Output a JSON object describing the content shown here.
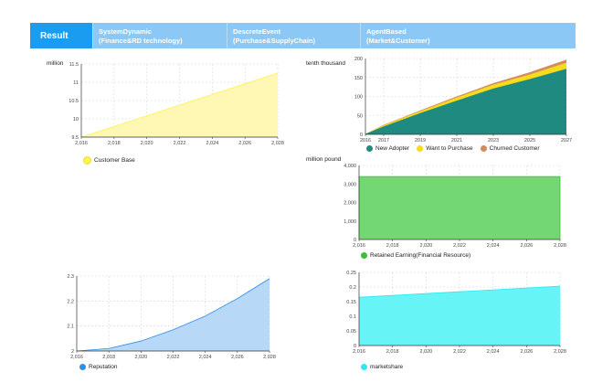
{
  "tabs": [
    {
      "line1": "Result",
      "line2": ""
    },
    {
      "line1": "SystemDynamic",
      "line2": "(Finance&RD technology)"
    },
    {
      "line1": "DescreteEvent",
      "line2": "(Purchase&SupplyChain)"
    },
    {
      "line1": "AgentBased",
      "line2": "(Market&Customer)"
    }
  ],
  "chart_data": [
    {
      "id": "customer_base",
      "type": "area",
      "ylabel_unit": "million",
      "x": [
        2016,
        2028
      ],
      "xticks": [
        "2,016",
        "2,018",
        "2,020",
        "2,022",
        "2,024",
        "2,026",
        "2,028"
      ],
      "yticks": [
        "9.5",
        "10",
        "10.5",
        "11",
        "11.5"
      ],
      "xlim": [
        2016,
        2028
      ],
      "ylim": [
        9.5,
        11.5
      ],
      "series": [
        {
          "name": "Customer Base",
          "color": "#fff34d",
          "fill": "#fff7b0",
          "x": [
            2016,
            2028
          ],
          "values": [
            9.5,
            11.25
          ]
        }
      ],
      "grid": true,
      "legend": "bottom"
    },
    {
      "id": "adopters",
      "type": "area",
      "stacked": true,
      "ylabel_unit": "tenth thousand",
      "xticks": [
        "2016",
        "2017",
        "2019",
        "2021",
        "2023",
        "2025",
        "2027"
      ],
      "xtick_values": [
        2016,
        2017,
        2019,
        2021,
        2023,
        2025,
        2027
      ],
      "yticks": [
        "0",
        "50",
        "100",
        "150",
        "200"
      ],
      "xlim": [
        2016,
        2027
      ],
      "ylim": [
        0,
        200
      ],
      "x": [
        2016,
        2017,
        2019,
        2021,
        2023,
        2025,
        2027
      ],
      "series": [
        {
          "name": "New Adopter",
          "color": "#1f8b80",
          "values": [
            0,
            20,
            55,
            88,
            120,
            145,
            172
          ]
        },
        {
          "name": "Want to Purchase",
          "color": "#f6dc1c",
          "values": [
            0,
            3,
            5,
            8,
            10,
            12,
            16
          ]
        },
        {
          "name": "Churned Customer",
          "color": "#d48c5c",
          "values": [
            0,
            1,
            2,
            3,
            4,
            6,
            8
          ]
        }
      ],
      "grid": true,
      "legend": "bottom"
    },
    {
      "id": "retained_earning",
      "type": "area",
      "ylabel_unit": "million pound",
      "xticks": [
        "2,016",
        "2,018",
        "2,020",
        "2,022",
        "2,024",
        "2,026",
        "2,028"
      ],
      "yticks": [
        "0",
        "1,000",
        "2,000",
        "3,000",
        "4,000"
      ],
      "xlim": [
        2016,
        2028
      ],
      "ylim": [
        0,
        4000
      ],
      "series": [
        {
          "name": "Retained Earning(Financial Resource)",
          "color": "#3bbd3b",
          "fill": "#6cd66c",
          "x": [
            2016,
            2016,
            2028,
            2028
          ],
          "values": [
            0,
            3400,
            3400,
            0
          ]
        }
      ],
      "grid": true,
      "legend": "bottom"
    },
    {
      "id": "reputation",
      "type": "area",
      "xticks": [
        "2,016",
        "2,018",
        "2,020",
        "2,022",
        "2,024",
        "2,026",
        "2,028"
      ],
      "yticks": [
        "2",
        "2.1",
        "2.2",
        "2.3"
      ],
      "xlim": [
        2016,
        2028
      ],
      "ylim": [
        2,
        2.3
      ],
      "series": [
        {
          "name": "Reputation",
          "color": "#2e8ee8",
          "fill": "#b3d6f7",
          "x": [
            2016,
            2018,
            2020,
            2022,
            2024,
            2026,
            2028
          ],
          "values": [
            2.0,
            2.01,
            2.04,
            2.085,
            2.14,
            2.21,
            2.29
          ]
        }
      ],
      "grid": true,
      "legend": "bottom"
    },
    {
      "id": "marketshare",
      "type": "area",
      "xticks": [
        "2,016",
        "2,018",
        "2,020",
        "2,022",
        "2,024",
        "2,026",
        "2,028"
      ],
      "yticks": [
        "0",
        "0.05",
        "0.1",
        "0.15",
        "0.2",
        "0.25"
      ],
      "xlim": [
        2016,
        2028
      ],
      "ylim": [
        0,
        0.25
      ],
      "series": [
        {
          "name": "marketshare",
          "color": "#2ee8f0",
          "fill": "#5ff3f6",
          "x": [
            2016,
            2028
          ],
          "values": [
            0.165,
            0.203
          ]
        }
      ],
      "grid": true,
      "legend": "bottom"
    }
  ]
}
